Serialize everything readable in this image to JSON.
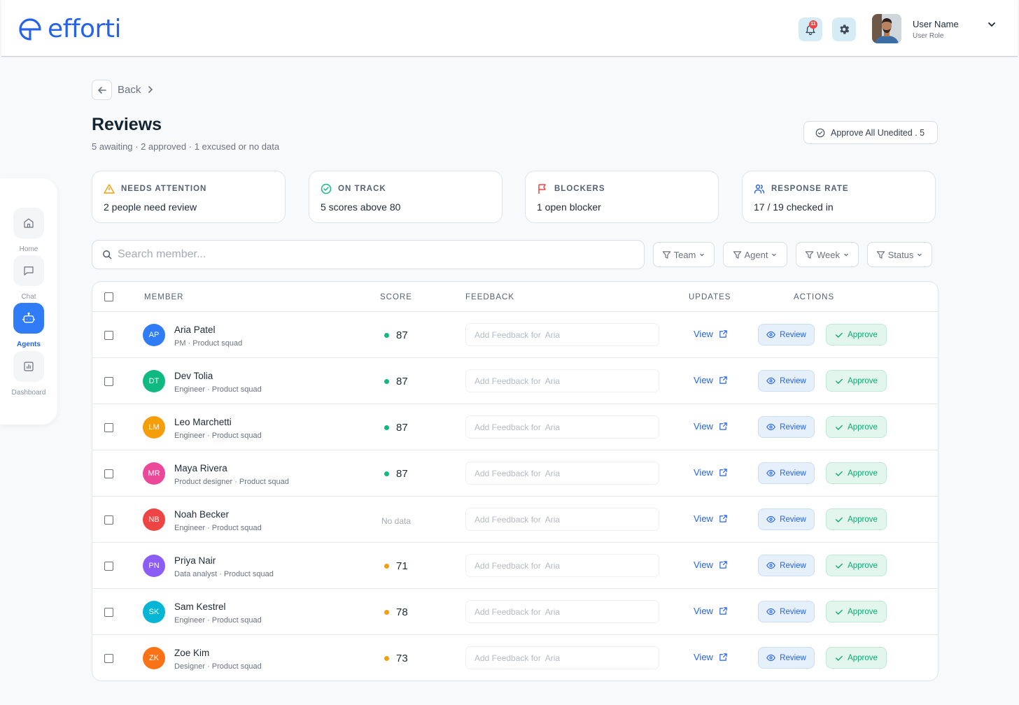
{
  "app": {
    "logo_text": "efforti",
    "brand_color": "#2563eb"
  },
  "header": {
    "notification_count": "11",
    "user_name": "User Name",
    "user_role": "User Role"
  },
  "sidebar": {
    "items": [
      {
        "label": "Home",
        "icon": "home-icon",
        "active": false
      },
      {
        "label": "Chat",
        "icon": "chat-icon",
        "active": false
      },
      {
        "label": "Agents",
        "icon": "robot-icon",
        "active": true
      },
      {
        "label": "Dashboard",
        "icon": "chart-icon",
        "active": false
      }
    ]
  },
  "nav": {
    "back_label": "Back"
  },
  "page": {
    "title": "Reviews",
    "subtitle": "5 awaiting · 2 approved · 1 excused or no data",
    "approve_all_label": "Approve All Unedited . 5"
  },
  "stats": [
    {
      "title": "NEEDS ATTENTION",
      "value": "2 people need review",
      "icon": "warning-icon",
      "color": "#f59e0b"
    },
    {
      "title": "ON TRACK",
      "value": "5 scores above 80",
      "icon": "check-circle-icon",
      "color": "#10b981"
    },
    {
      "title": "BLOCKERS",
      "value": "1 open blocker",
      "icon": "flag-icon",
      "color": "#ef4444"
    },
    {
      "title": "RESPONSE RATE",
      "value": "17 / 19 checked in",
      "icon": "users-icon",
      "color": "#2563eb"
    }
  ],
  "search": {
    "placeholder": "Search member..."
  },
  "filters": [
    "Team",
    "Agent",
    "Week",
    "Status"
  ],
  "table": {
    "columns": {
      "member": "MEMBER",
      "score": "SCORE",
      "feedback": "FEEDBACK",
      "updates": "UPDATES",
      "actions": "ACTIONS"
    },
    "feedback_placeholder": "Add Feedback for  Aria",
    "view_label": "View",
    "review_label": "Review",
    "approve_label": "Approve",
    "no_data_label": "No data",
    "rows": [
      {
        "initials": "AP",
        "name": "Aria Patel",
        "role": "PM · Product squad",
        "score": "87",
        "status": "good",
        "avatar_color": "#2f7cf6"
      },
      {
        "initials": "DT",
        "name": "Dev Tolia",
        "role": "Engineer · Product squad",
        "score": "87",
        "status": "good",
        "avatar_color": "#10b981"
      },
      {
        "initials": "LM",
        "name": "Leo Marchetti",
        "role": "Engineer · Product squad",
        "score": "87",
        "status": "good",
        "avatar_color": "#f59e0b"
      },
      {
        "initials": "MR",
        "name": "Maya Rivera",
        "role": "Product designer · Product squad",
        "score": "87",
        "status": "good",
        "avatar_color": "#ec4899"
      },
      {
        "initials": "NB",
        "name": "Noah Becker",
        "role": "Engineer · Product squad",
        "score": null,
        "status": "none",
        "avatar_color": "#ef4444"
      },
      {
        "initials": "PN",
        "name": "Priya Nair",
        "role": "Data analyst · Product squad",
        "score": "71",
        "status": "warn",
        "avatar_color": "#8b5cf6"
      },
      {
        "initials": "SK",
        "name": "Sam Kestrel",
        "role": "Engineer · Product squad",
        "score": "78",
        "status": "warn",
        "avatar_color": "#06b6d4"
      },
      {
        "initials": "ZK",
        "name": "Zoe Kim",
        "role": "Designer · Product squad",
        "score": "73",
        "status": "warn",
        "avatar_color": "#f97316"
      }
    ]
  },
  "status_colors": {
    "good": "#10b981",
    "warn": "#f59e0b"
  }
}
